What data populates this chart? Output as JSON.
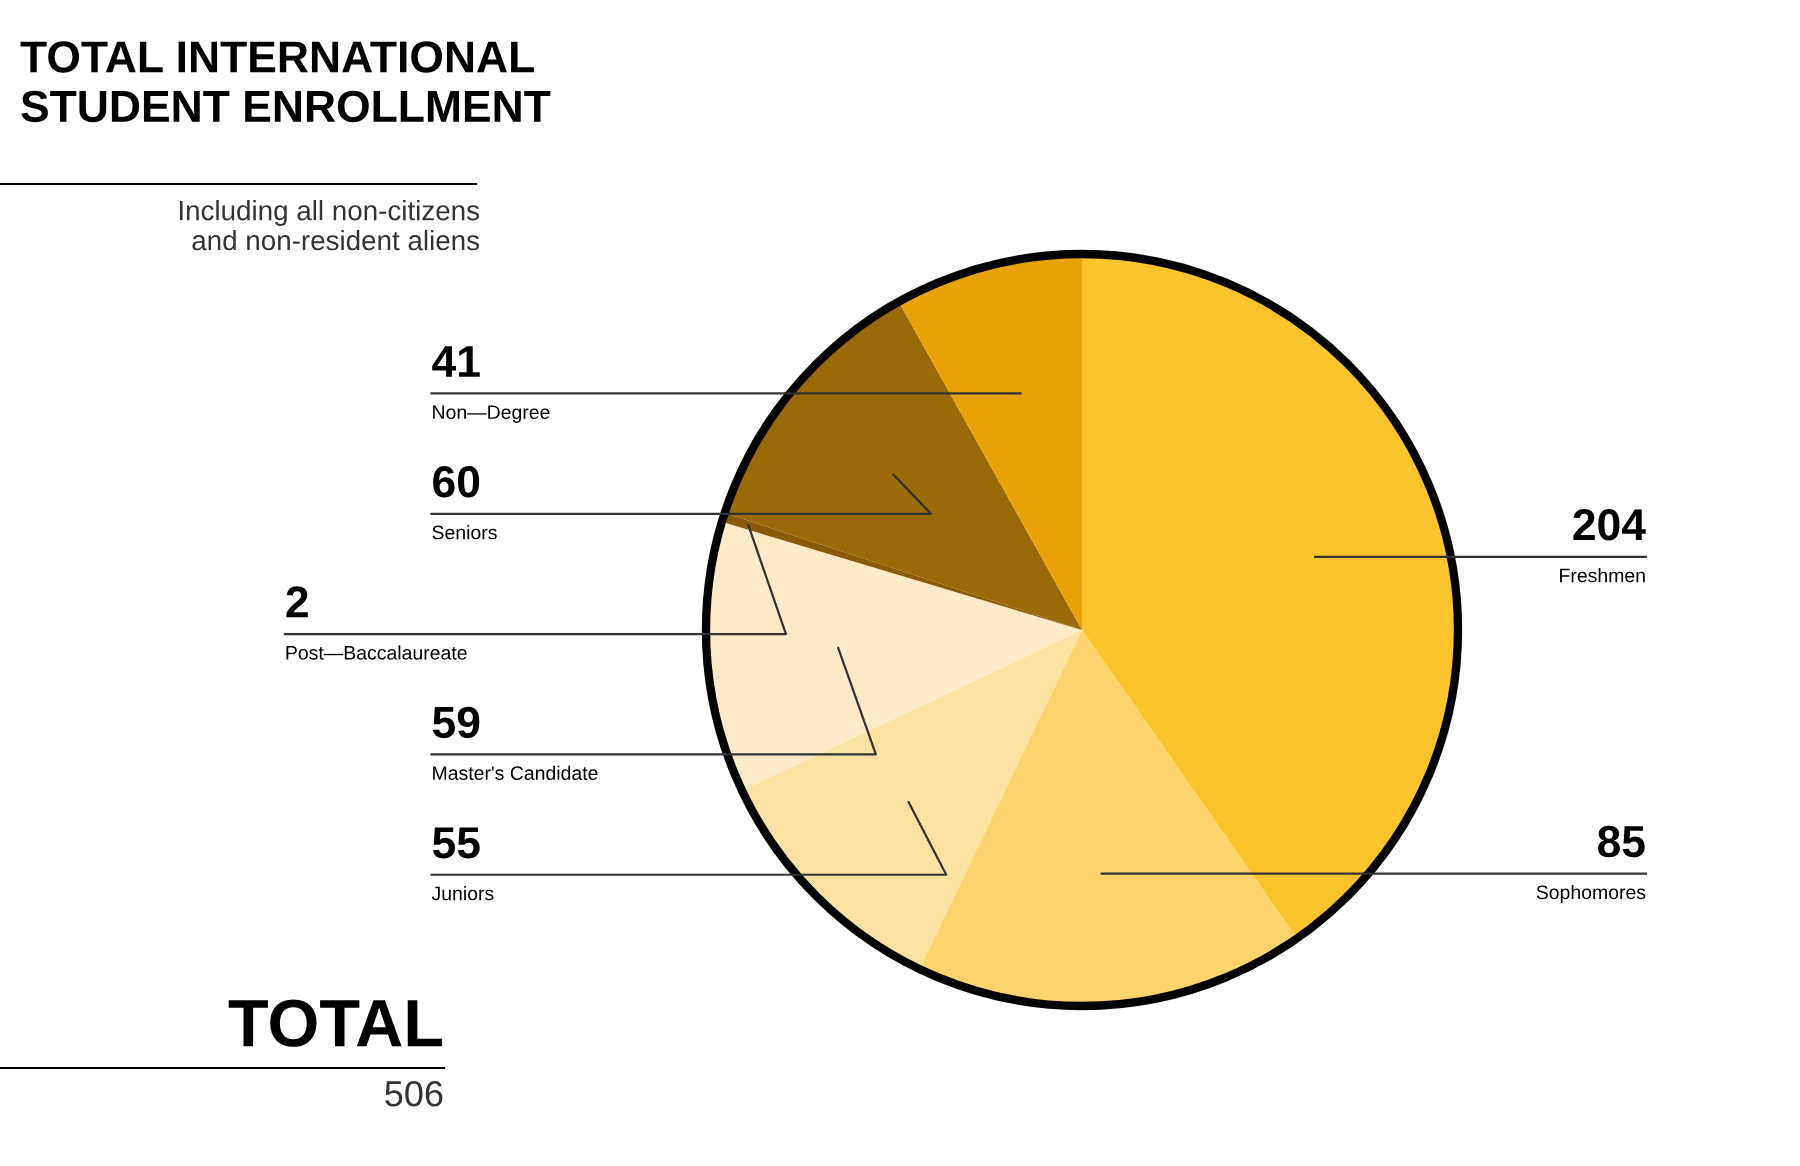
{
  "chart_data": {
    "type": "pie",
    "title": "TOTAL INTERNATIONAL\nSTUDENT ENROLLMENT",
    "subtitle": "Including all non-citizens\nand non-resident aliens",
    "categories": [
      "Freshmen",
      "Sophomores",
      "Juniors",
      "Master's Candidate",
      "Post—Baccalaureate",
      "Seniors",
      "Non—Degree"
    ],
    "values": [
      204,
      85,
      55,
      59,
      2,
      60,
      41
    ],
    "colors": [
      "#fcc42c",
      "#fdd46c",
      "#fee2a2",
      "#ffeac8",
      "#8a5a04",
      "#9a6a06",
      "#e7a305"
    ],
    "data_labels": true,
    "annotations": [
      "TOTAL",
      "506"
    ]
  }
}
